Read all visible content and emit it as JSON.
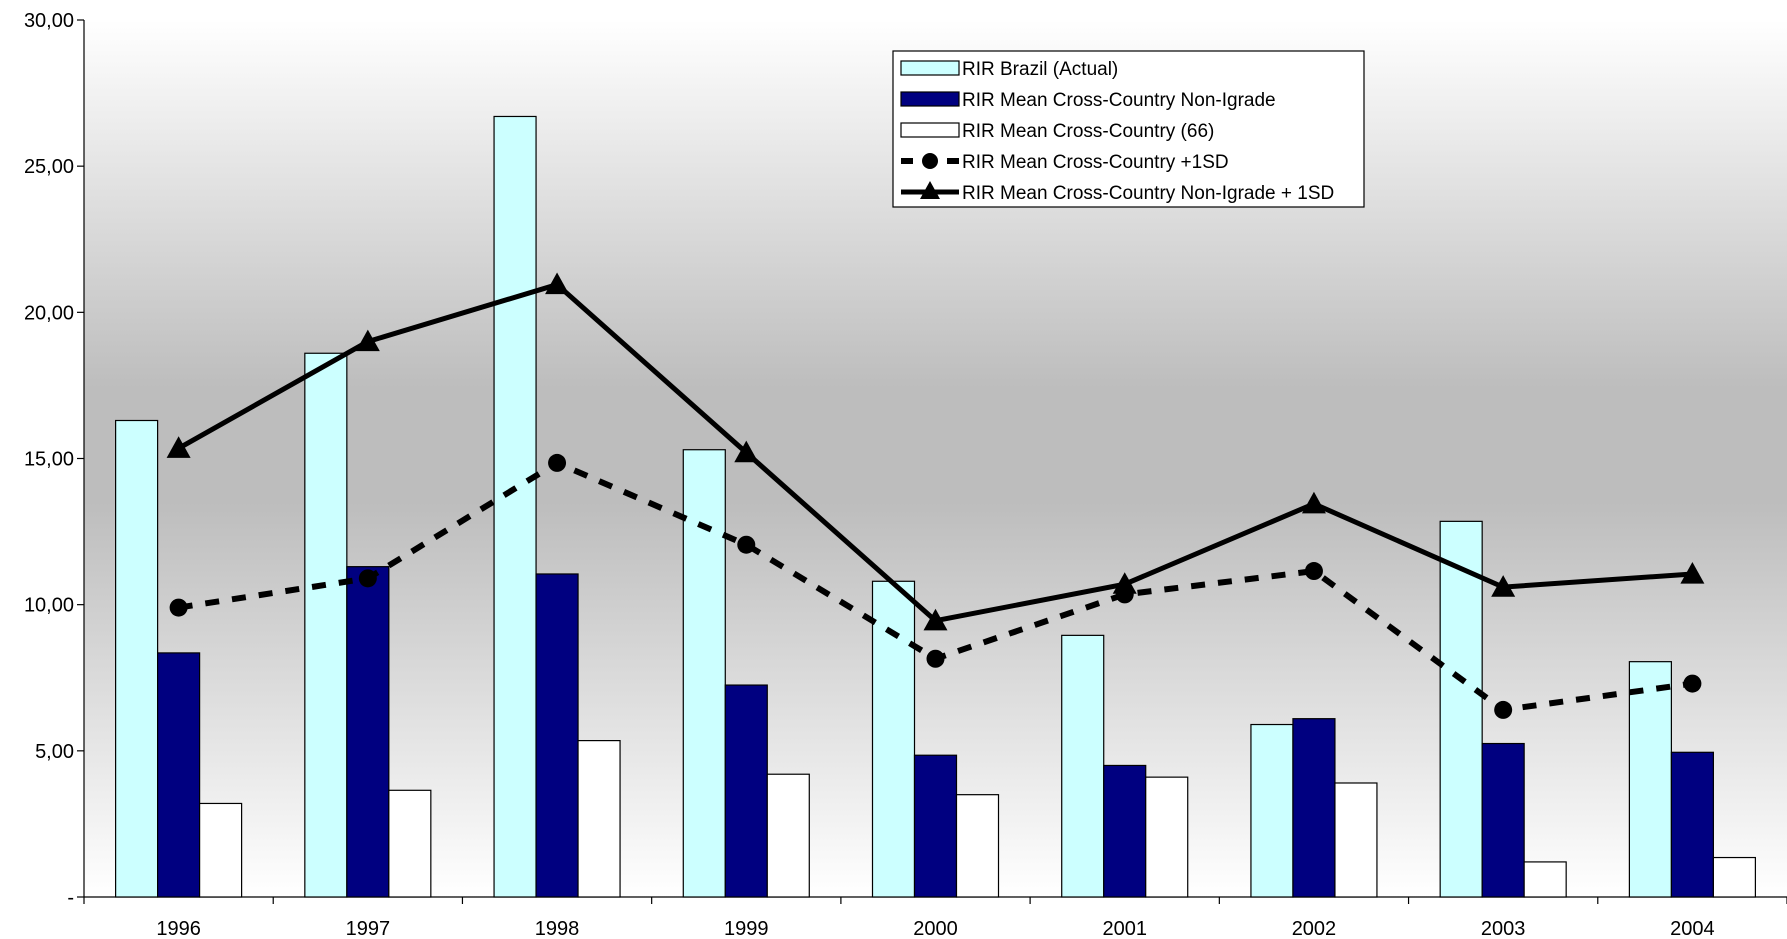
{
  "chart_data": {
    "type": "bar",
    "categories": [
      "1996",
      "1997",
      "1998",
      "1999",
      "2000",
      "2001",
      "2002",
      "2003",
      "2004"
    ],
    "series": [
      {
        "name": "RIR Brazil (Actual)",
        "kind": "bar",
        "color": "#ccffff",
        "values": [
          16.3,
          18.6,
          26.7,
          15.3,
          10.8,
          8.95,
          5.9,
          12.85,
          8.05
        ]
      },
      {
        "name": "RIR Mean Cross-Country Non-Igrade",
        "kind": "bar",
        "color": "#000080",
        "values": [
          8.35,
          11.3,
          11.05,
          7.25,
          4.85,
          4.5,
          6.1,
          5.25,
          4.95
        ]
      },
      {
        "name": "RIR Mean Cross-Country (66)",
        "kind": "bar",
        "color": "#ffffff",
        "values": [
          3.2,
          3.65,
          5.35,
          4.2,
          3.5,
          4.1,
          3.9,
          1.2,
          1.35
        ]
      },
      {
        "name": "RIR Mean Cross-Country +1SD",
        "kind": "line",
        "style": "dashed",
        "marker": "circle",
        "color": "#000000",
        "values": [
          9.9,
          10.9,
          14.85,
          12.05,
          8.15,
          10.35,
          11.15,
          6.4,
          7.3
        ]
      },
      {
        "name": "RIR Mean Cross-Country Non-Igrade + 1SD",
        "kind": "line",
        "style": "solid",
        "marker": "triangle",
        "color": "#000000",
        "values": [
          15.35,
          19.0,
          20.95,
          15.2,
          9.45,
          10.7,
          13.45,
          10.6,
          11.05
        ]
      }
    ],
    "y_ticks": [
      "-",
      "5,00",
      "10,00",
      "15,00",
      "20,00",
      "25,00",
      "30,00"
    ],
    "ylim": [
      0,
      30
    ],
    "grid": false,
    "legend_position": "top-center",
    "background": "vertical-gradient-white-grey-white"
  }
}
